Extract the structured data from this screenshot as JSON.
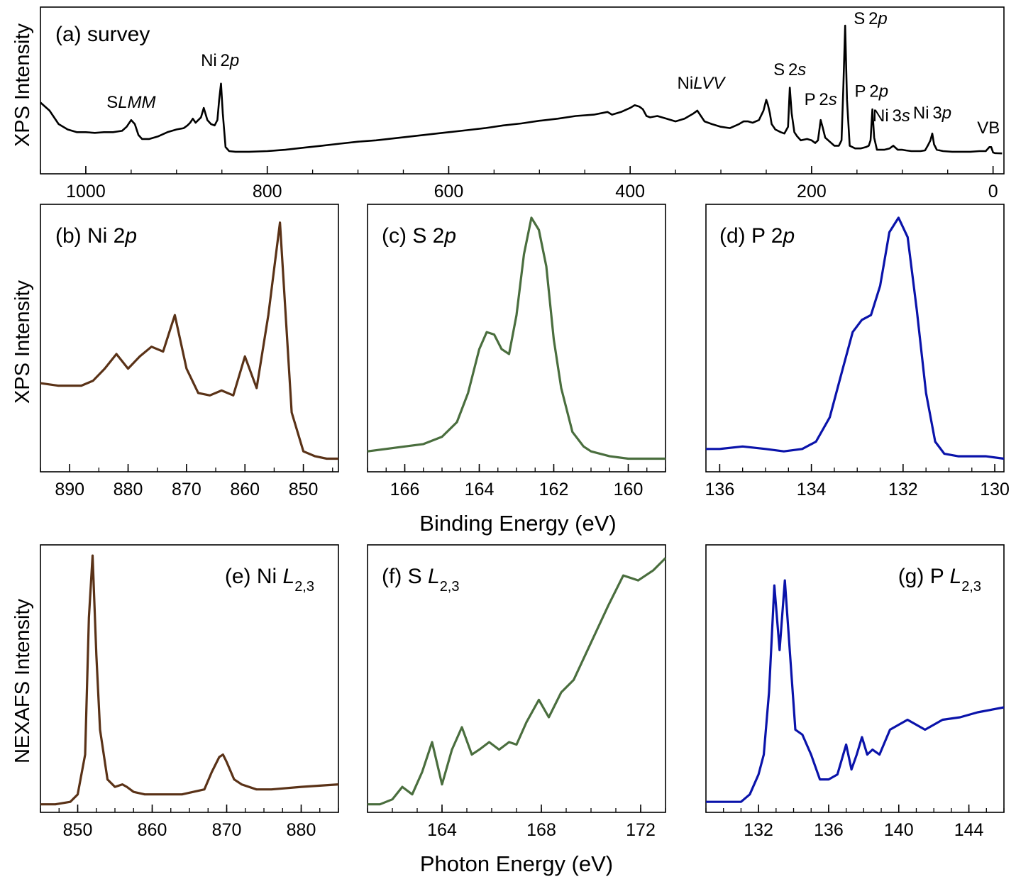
{
  "chart_data": [
    {
      "id": "a",
      "type": "line",
      "title": "(a) survey",
      "color": "#000000",
      "xlim": [
        1050,
        -12
      ],
      "ylim": [
        0,
        1
      ],
      "ylabel": "XPS Intensity",
      "xticks": [
        1000,
        800,
        600,
        400,
        200,
        0
      ],
      "x": [
        1050,
        1040,
        1030,
        1020,
        1010,
        1000,
        990,
        980,
        970,
        960,
        955,
        950,
        946,
        942,
        938,
        930,
        920,
        910,
        900,
        892,
        888,
        885,
        882,
        879,
        876,
        873,
        870,
        866,
        862,
        858,
        855,
        853,
        851,
        849,
        846,
        842,
        835,
        820,
        800,
        780,
        760,
        740,
        720,
        700,
        680,
        660,
        640,
        620,
        600,
        580,
        560,
        540,
        520,
        500,
        480,
        460,
        440,
        425,
        420,
        410,
        400,
        395,
        390,
        386,
        382,
        378,
        370,
        360,
        350,
        340,
        330,
        326,
        322,
        318,
        310,
        300,
        290,
        280,
        275,
        270,
        265,
        258,
        253,
        250,
        248,
        246,
        244,
        240,
        234,
        230,
        226,
        224,
        222,
        219,
        216,
        212,
        205,
        200,
        196,
        193,
        190,
        188,
        185,
        180,
        175,
        170,
        167,
        165,
        163,
        161,
        158,
        152,
        146,
        140,
        137,
        135,
        133,
        131,
        128,
        120,
        114,
        110,
        105,
        100,
        96,
        90,
        85,
        80,
        75,
        72,
        69,
        67,
        65,
        62,
        55,
        45,
        35,
        25,
        15,
        8,
        4,
        2,
        0,
        -2,
        -5,
        -10
      ],
      "y": [
        0.38,
        0.32,
        0.22,
        0.18,
        0.16,
        0.16,
        0.155,
        0.16,
        0.16,
        0.17,
        0.2,
        0.25,
        0.22,
        0.14,
        0.11,
        0.11,
        0.13,
        0.16,
        0.18,
        0.19,
        0.21,
        0.23,
        0.26,
        0.23,
        0.25,
        0.27,
        0.34,
        0.25,
        0.22,
        0.21,
        0.25,
        0.4,
        0.52,
        0.3,
        0.05,
        0.02,
        0.015,
        0.015,
        0.02,
        0.03,
        0.045,
        0.06,
        0.075,
        0.09,
        0.1,
        0.115,
        0.13,
        0.145,
        0.16,
        0.175,
        0.19,
        0.21,
        0.225,
        0.245,
        0.26,
        0.28,
        0.29,
        0.31,
        0.29,
        0.31,
        0.34,
        0.36,
        0.35,
        0.33,
        0.28,
        0.27,
        0.28,
        0.26,
        0.24,
        0.26,
        0.3,
        0.32,
        0.28,
        0.24,
        0.22,
        0.2,
        0.19,
        0.22,
        0.24,
        0.24,
        0.23,
        0.25,
        0.32,
        0.4,
        0.36,
        0.3,
        0.22,
        0.18,
        0.16,
        0.15,
        0.2,
        0.49,
        0.3,
        0.16,
        0.13,
        0.1,
        0.11,
        0.1,
        0.08,
        0.1,
        0.25,
        0.2,
        0.12,
        0.09,
        0.06,
        0.06,
        0.1,
        0.5,
        0.95,
        0.4,
        0.06,
        0.04,
        0.04,
        0.05,
        0.06,
        0.1,
        0.33,
        0.12,
        0.03,
        0.03,
        0.04,
        0.06,
        0.03,
        0.03,
        0.025,
        0.02,
        0.02,
        0.02,
        0.025,
        0.06,
        0.1,
        0.15,
        0.07,
        0.03,
        0.02,
        0.015,
        0.015,
        0.015,
        0.02,
        0.02,
        0.05,
        0.05,
        0.01,
        0.005,
        0.004,
        0.003
      ],
      "annotations": [
        {
          "parts": [
            [
              "S",
              ""
            ],
            [
              "LMM",
              "i"
            ]
          ],
          "x": 950,
          "y": 0.32
        },
        {
          "parts": [
            [
              "Ni",
              ""
            ],
            [
              "2",
              ""
            ],
            [
              "p",
              "i"
            ]
          ],
          "x": 852,
          "y": 0.63
        },
        {
          "parts": [
            [
              "Ni",
              ""
            ],
            [
              "LVV",
              "i"
            ]
          ],
          "x": 322,
          "y": 0.46
        },
        {
          "parts": [
            [
              "S",
              ""
            ],
            [
              "2",
              ""
            ],
            [
              "s",
              "i"
            ]
          ],
          "x": 224,
          "y": 0.56
        },
        {
          "parts": [
            [
              "P",
              ""
            ],
            [
              "2",
              ""
            ],
            [
              "s",
              "i"
            ]
          ],
          "x": 190,
          "y": 0.34
        },
        {
          "parts": [
            [
              "S",
              ""
            ],
            [
              "2",
              ""
            ],
            [
              "p",
              "i"
            ]
          ],
          "x": 135,
          "y": 0.94
        },
        {
          "parts": [
            [
              "P",
              ""
            ],
            [
              "2",
              ""
            ],
            [
              "p",
              "i"
            ]
          ],
          "x": 134,
          "y": 0.4
        },
        {
          "parts": [
            [
              "Ni",
              ""
            ],
            [
              "3",
              ""
            ],
            [
              "s",
              "i"
            ]
          ],
          "x": 112,
          "y": 0.22
        },
        {
          "parts": [
            [
              "Ni",
              ""
            ],
            [
              "3",
              ""
            ],
            [
              "p",
              "i"
            ]
          ],
          "x": 67,
          "y": 0.24
        },
        {
          "parts": [
            [
              "VB",
              ""
            ]
          ],
          "x": 5,
          "y": 0.13
        }
      ]
    },
    {
      "id": "b",
      "type": "line",
      "title_parts": [
        [
          "(b) Ni 2",
          ""
        ],
        [
          "p",
          "i"
        ]
      ],
      "color": "#5a3217",
      "xlim": [
        895,
        844
      ],
      "ylim": [
        0,
        1
      ],
      "xticks": [
        890,
        880,
        870,
        860,
        850
      ],
      "x": [
        895,
        892,
        890,
        888,
        886,
        884,
        882,
        880,
        878,
        876,
        874,
        872,
        870,
        868,
        866,
        864,
        862,
        860,
        858,
        856,
        854,
        852,
        850,
        848,
        846,
        844
      ],
      "y": [
        0.32,
        0.31,
        0.31,
        0.31,
        0.33,
        0.38,
        0.44,
        0.38,
        0.43,
        0.47,
        0.45,
        0.6,
        0.38,
        0.28,
        0.27,
        0.29,
        0.27,
        0.43,
        0.3,
        0.6,
        0.98,
        0.2,
        0.04,
        0.02,
        0.01,
        0.01
      ]
    },
    {
      "id": "c",
      "type": "line",
      "title_parts": [
        [
          "(c) S 2",
          ""
        ],
        [
          "p",
          "i"
        ]
      ],
      "color": "#4a6e3e",
      "xlim": [
        167,
        159
      ],
      "ylim": [
        0,
        1
      ],
      "xticks": [
        166,
        164,
        162,
        160
      ],
      "x": [
        167,
        166,
        165.5,
        165,
        164.6,
        164.3,
        164,
        163.8,
        163.6,
        163.4,
        163.2,
        163,
        162.8,
        162.6,
        162.4,
        162.2,
        162,
        161.8,
        161.5,
        161.2,
        161,
        160.5,
        160,
        159.5,
        159
      ],
      "y": [
        0.04,
        0.06,
        0.07,
        0.1,
        0.16,
        0.28,
        0.46,
        0.53,
        0.52,
        0.46,
        0.44,
        0.6,
        0.85,
        1,
        0.95,
        0.8,
        0.5,
        0.3,
        0.12,
        0.06,
        0.04,
        0.02,
        0.01,
        0.01,
        0.01
      ]
    },
    {
      "id": "d",
      "type": "line",
      "title_parts": [
        [
          "(d) P 2",
          ""
        ],
        [
          "p",
          "i"
        ]
      ],
      "color": "#0a13aa",
      "xlim": [
        136.3,
        129.8
      ],
      "ylim": [
        0,
        1
      ],
      "xticks": [
        136,
        134,
        132,
        130
      ],
      "x": [
        136.3,
        136,
        135.5,
        135,
        134.6,
        134.2,
        133.9,
        133.6,
        133.3,
        133.1,
        132.9,
        132.7,
        132.5,
        132.3,
        132.1,
        131.9,
        131.7,
        131.5,
        131.3,
        131.1,
        130.8,
        130.5,
        130.2,
        129.8
      ],
      "y": [
        0.05,
        0.05,
        0.06,
        0.05,
        0.04,
        0.05,
        0.08,
        0.18,
        0.39,
        0.53,
        0.58,
        0.6,
        0.72,
        0.94,
        1,
        0.92,
        0.62,
        0.28,
        0.08,
        0.03,
        0.02,
        0.02,
        0.02,
        0.01
      ]
    },
    {
      "id": "e",
      "type": "line",
      "title_parts": [
        [
          "(e) Ni ",
          ""
        ],
        [
          "L",
          "i"
        ],
        [
          "2,3",
          "sub"
        ]
      ],
      "color": "#5a3217",
      "xlim": [
        845,
        885
      ],
      "ylim": [
        0,
        1
      ],
      "ylabel": "NEXAFS Intensity",
      "xticks": [
        850,
        860,
        870,
        880
      ],
      "x": [
        845,
        847,
        849,
        850,
        851,
        851.5,
        852,
        852.5,
        853,
        854,
        855,
        856,
        856.6,
        857.5,
        859,
        861,
        864,
        867,
        868,
        869,
        869.5,
        870,
        871,
        872,
        874,
        876,
        880,
        885
      ],
      "y": [
        0,
        0,
        0.01,
        0.04,
        0.2,
        0.75,
        1,
        0.6,
        0.3,
        0.1,
        0.07,
        0.08,
        0.07,
        0.05,
        0.04,
        0.04,
        0.04,
        0.06,
        0.13,
        0.19,
        0.2,
        0.17,
        0.1,
        0.08,
        0.06,
        0.06,
        0.07,
        0.08
      ]
    },
    {
      "id": "f",
      "type": "line",
      "title_parts": [
        [
          "(f) S ",
          ""
        ],
        [
          "L",
          "i"
        ],
        [
          "2,3",
          "sub"
        ]
      ],
      "color": "#4a6e3e",
      "xlim": [
        161,
        173
      ],
      "ylim": [
        0,
        1
      ],
      "xticks": [
        164,
        168,
        172
      ],
      "x": [
        161,
        161.5,
        162,
        162.4,
        162.8,
        163.2,
        163.6,
        164,
        164.4,
        164.8,
        165.2,
        165.5,
        165.9,
        166.3,
        166.7,
        167,
        167.4,
        167.9,
        168.3,
        168.8,
        169.3,
        170,
        170.7,
        171.3,
        171.9,
        172.5,
        173
      ],
      "y": [
        0,
        0,
        0.02,
        0.07,
        0.04,
        0.13,
        0.25,
        0.08,
        0.22,
        0.31,
        0.2,
        0.22,
        0.25,
        0.22,
        0.25,
        0.24,
        0.33,
        0.42,
        0.35,
        0.45,
        0.5,
        0.65,
        0.8,
        0.92,
        0.9,
        0.94,
        0.99
      ]
    },
    {
      "id": "g",
      "type": "line",
      "title_parts": [
        [
          "(g) P ",
          ""
        ],
        [
          "L",
          "i"
        ],
        [
          "2,3",
          "sub"
        ]
      ],
      "color": "#0a13aa",
      "xlim": [
        129,
        146
      ],
      "ylim": [
        0,
        1
      ],
      "xticks": [
        132,
        136,
        140,
        144
      ],
      "x": [
        129,
        130,
        131,
        131.5,
        132,
        132.3,
        132.6,
        132.9,
        133.2,
        133.5,
        133.8,
        134.1,
        134.5,
        135,
        135.5,
        136,
        136.5,
        137,
        137.3,
        137.6,
        137.9,
        138.2,
        138.5,
        138.9,
        139.5,
        140.5,
        141.5,
        142.5,
        143.5,
        144.5,
        146
      ],
      "y": [
        0.01,
        0.01,
        0.01,
        0.04,
        0.12,
        0.2,
        0.45,
        0.88,
        0.62,
        0.9,
        0.6,
        0.3,
        0.28,
        0.2,
        0.1,
        0.1,
        0.12,
        0.24,
        0.14,
        0.2,
        0.27,
        0.2,
        0.22,
        0.2,
        0.3,
        0.34,
        0.3,
        0.34,
        0.35,
        0.37,
        0.39
      ]
    }
  ],
  "axis_labels": {
    "xps_intensity_top": "XPS Intensity",
    "xps_intensity_mid": "XPS Intensity",
    "nexafs_intensity": "NEXAFS Intensity",
    "binding_energy": "Binding Energy (eV)",
    "photon_energy": "Photon Energy (eV)"
  }
}
